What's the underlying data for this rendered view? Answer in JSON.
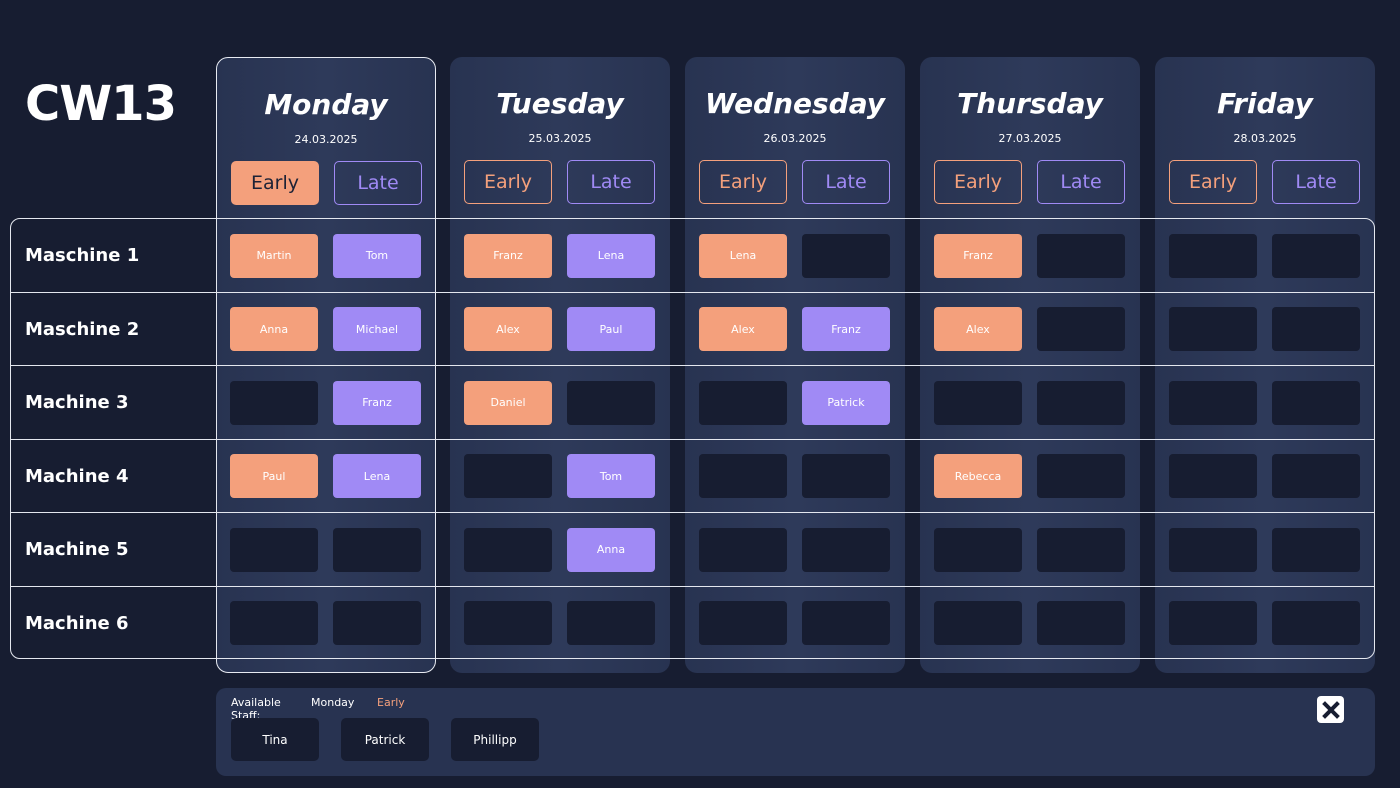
{
  "week": {
    "title": "CW13"
  },
  "days": [
    {
      "name": "Monday",
      "date": "24.03.2025",
      "early_label": "Early",
      "late_label": "Late"
    },
    {
      "name": "Tuesday",
      "date": "25.03.2025",
      "early_label": "Early",
      "late_label": "Late"
    },
    {
      "name": "Wednesday",
      "date": "26.03.2025",
      "early_label": "Early",
      "late_label": "Late"
    },
    {
      "name": "Thursday",
      "date": "27.03.2025",
      "early_label": "Early",
      "late_label": "Late"
    },
    {
      "name": "Friday",
      "date": "28.03.2025",
      "early_label": "Early",
      "late_label": "Late"
    }
  ],
  "selected": {
    "day": "Monday",
    "shift": "Early"
  },
  "machines": [
    {
      "label": "Maschine 1",
      "slots": [
        [
          "Martin",
          "Tom"
        ],
        [
          "Franz",
          "Lena"
        ],
        [
          "Lena",
          ""
        ],
        [
          "Franz",
          ""
        ],
        [
          "",
          ""
        ]
      ]
    },
    {
      "label": "Maschine 2",
      "slots": [
        [
          "Anna",
          "Michael"
        ],
        [
          "Alex",
          "Paul"
        ],
        [
          "Alex",
          "Franz"
        ],
        [
          "Alex",
          ""
        ],
        [
          "",
          ""
        ]
      ]
    },
    {
      "label": "Machine 3",
      "slots": [
        [
          "",
          "Franz"
        ],
        [
          "Daniel",
          ""
        ],
        [
          "",
          "Patrick"
        ],
        [
          "",
          ""
        ],
        [
          "",
          ""
        ]
      ]
    },
    {
      "label": "Machine 4",
      "slots": [
        [
          "Paul",
          "Lena"
        ],
        [
          "",
          "Tom"
        ],
        [
          "",
          ""
        ],
        [
          "Rebecca",
          ""
        ],
        [
          "",
          ""
        ]
      ]
    },
    {
      "label": "Machine 5",
      "slots": [
        [
          "",
          ""
        ],
        [
          "",
          "Anna"
        ],
        [
          "",
          ""
        ],
        [
          "",
          ""
        ],
        [
          "",
          ""
        ]
      ]
    },
    {
      "label": "Machine 6",
      "slots": [
        [
          "",
          ""
        ],
        [
          "",
          ""
        ],
        [
          "",
          ""
        ],
        [
          "",
          ""
        ],
        [
          "",
          ""
        ]
      ]
    }
  ],
  "staff_panel": {
    "label": "Available Staff:",
    "day": "Monday",
    "shift": "Early",
    "staff": [
      "Tina",
      "Patrick",
      "Phillipp"
    ]
  },
  "colors": {
    "early": "#f4a07c",
    "late": "#a08af5",
    "background": "#171d31",
    "panel": "#283351"
  },
  "icons": {
    "close": "close-x-icon"
  }
}
